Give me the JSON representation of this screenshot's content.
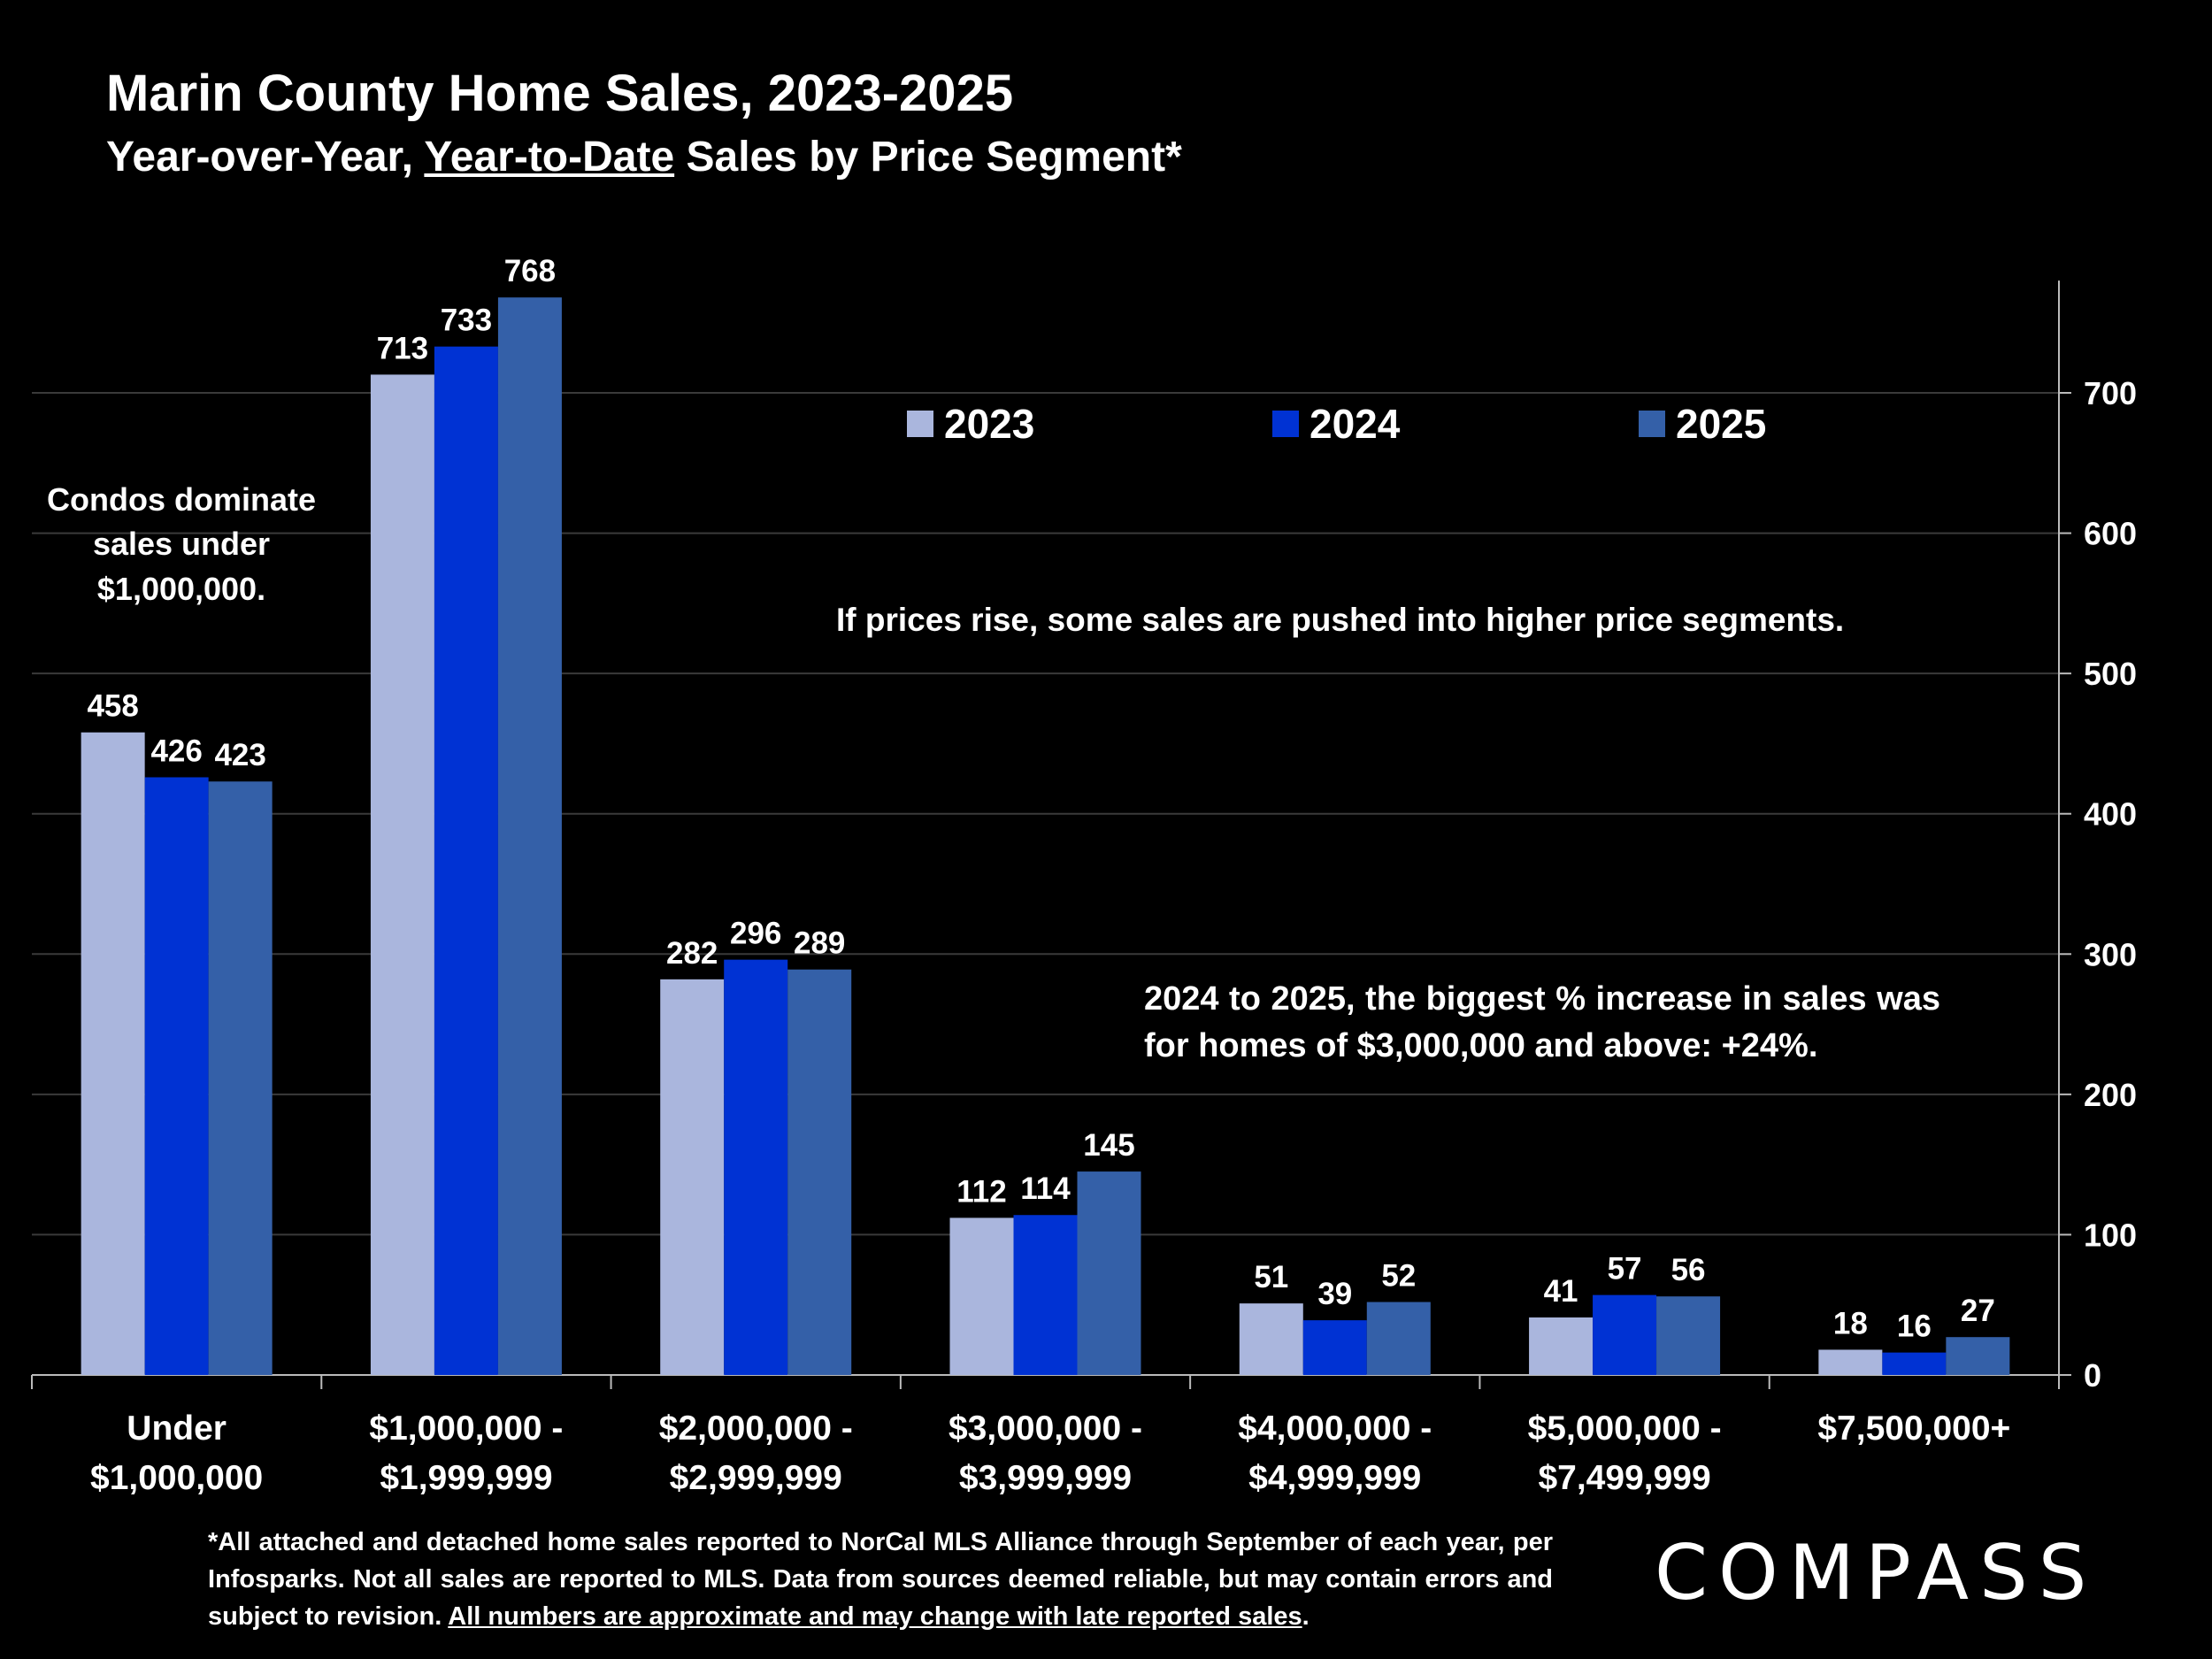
{
  "header": {
    "title": "Marin County Home Sales, 2023-2025",
    "subtitle_part1": "Year-over-Year, ",
    "subtitle_underlined": "Year-to-Date",
    "subtitle_part2": " Sales by Price Segment*"
  },
  "notes": {
    "condos": "Condos dominate sales under $1,000,000.",
    "prices": "If prices rise, some sales are pushed into higher price segments.",
    "biggest_increase": "2024 to 2025, the biggest % increase in sales was for homes of $3,000,000 and above: +24%."
  },
  "footnote": {
    "text": "*All attached and detached home sales reported to NorCal MLS Alliance through September of each year, per Infosparks. Not all sales are reported to MLS. Data from sources deemed reliable, but may contain errors and subject to revision. ",
    "underlined": "All numbers are approximate and may change with late reported sales",
    "end": "."
  },
  "logo": {
    "text": "COMPASS"
  },
  "chart_data": {
    "type": "bar",
    "categories": [
      [
        "Under",
        "$1,000,000"
      ],
      [
        "$1,000,000 -",
        "$1,999,999"
      ],
      [
        "$2,000,000 -",
        "$2,999,999"
      ],
      [
        "$3,000,000 -",
        "$3,999,999"
      ],
      [
        "$4,000,000 -",
        "$4,999,999"
      ],
      [
        "$5,000,000 -",
        "$7,499,999"
      ],
      [
        "$7,500,000+"
      ]
    ],
    "series": [
      {
        "name": "2023",
        "color": "#aab6dd",
        "values": [
          458,
          713,
          282,
          112,
          51,
          41,
          18
        ]
      },
      {
        "name": "2024",
        "color": "#0032d3",
        "values": [
          426,
          733,
          296,
          114,
          39,
          57,
          16
        ]
      },
      {
        "name": "2025",
        "color": "#3460a8",
        "values": [
          423,
          768,
          289,
          145,
          52,
          56,
          27
        ]
      }
    ],
    "ylim": [
      0,
      780
    ],
    "yticks": [
      0,
      100,
      200,
      300,
      400,
      500,
      600,
      700
    ],
    "y_axis_side": "right",
    "grid": true,
    "legend": "top-center",
    "data_labels": true
  }
}
